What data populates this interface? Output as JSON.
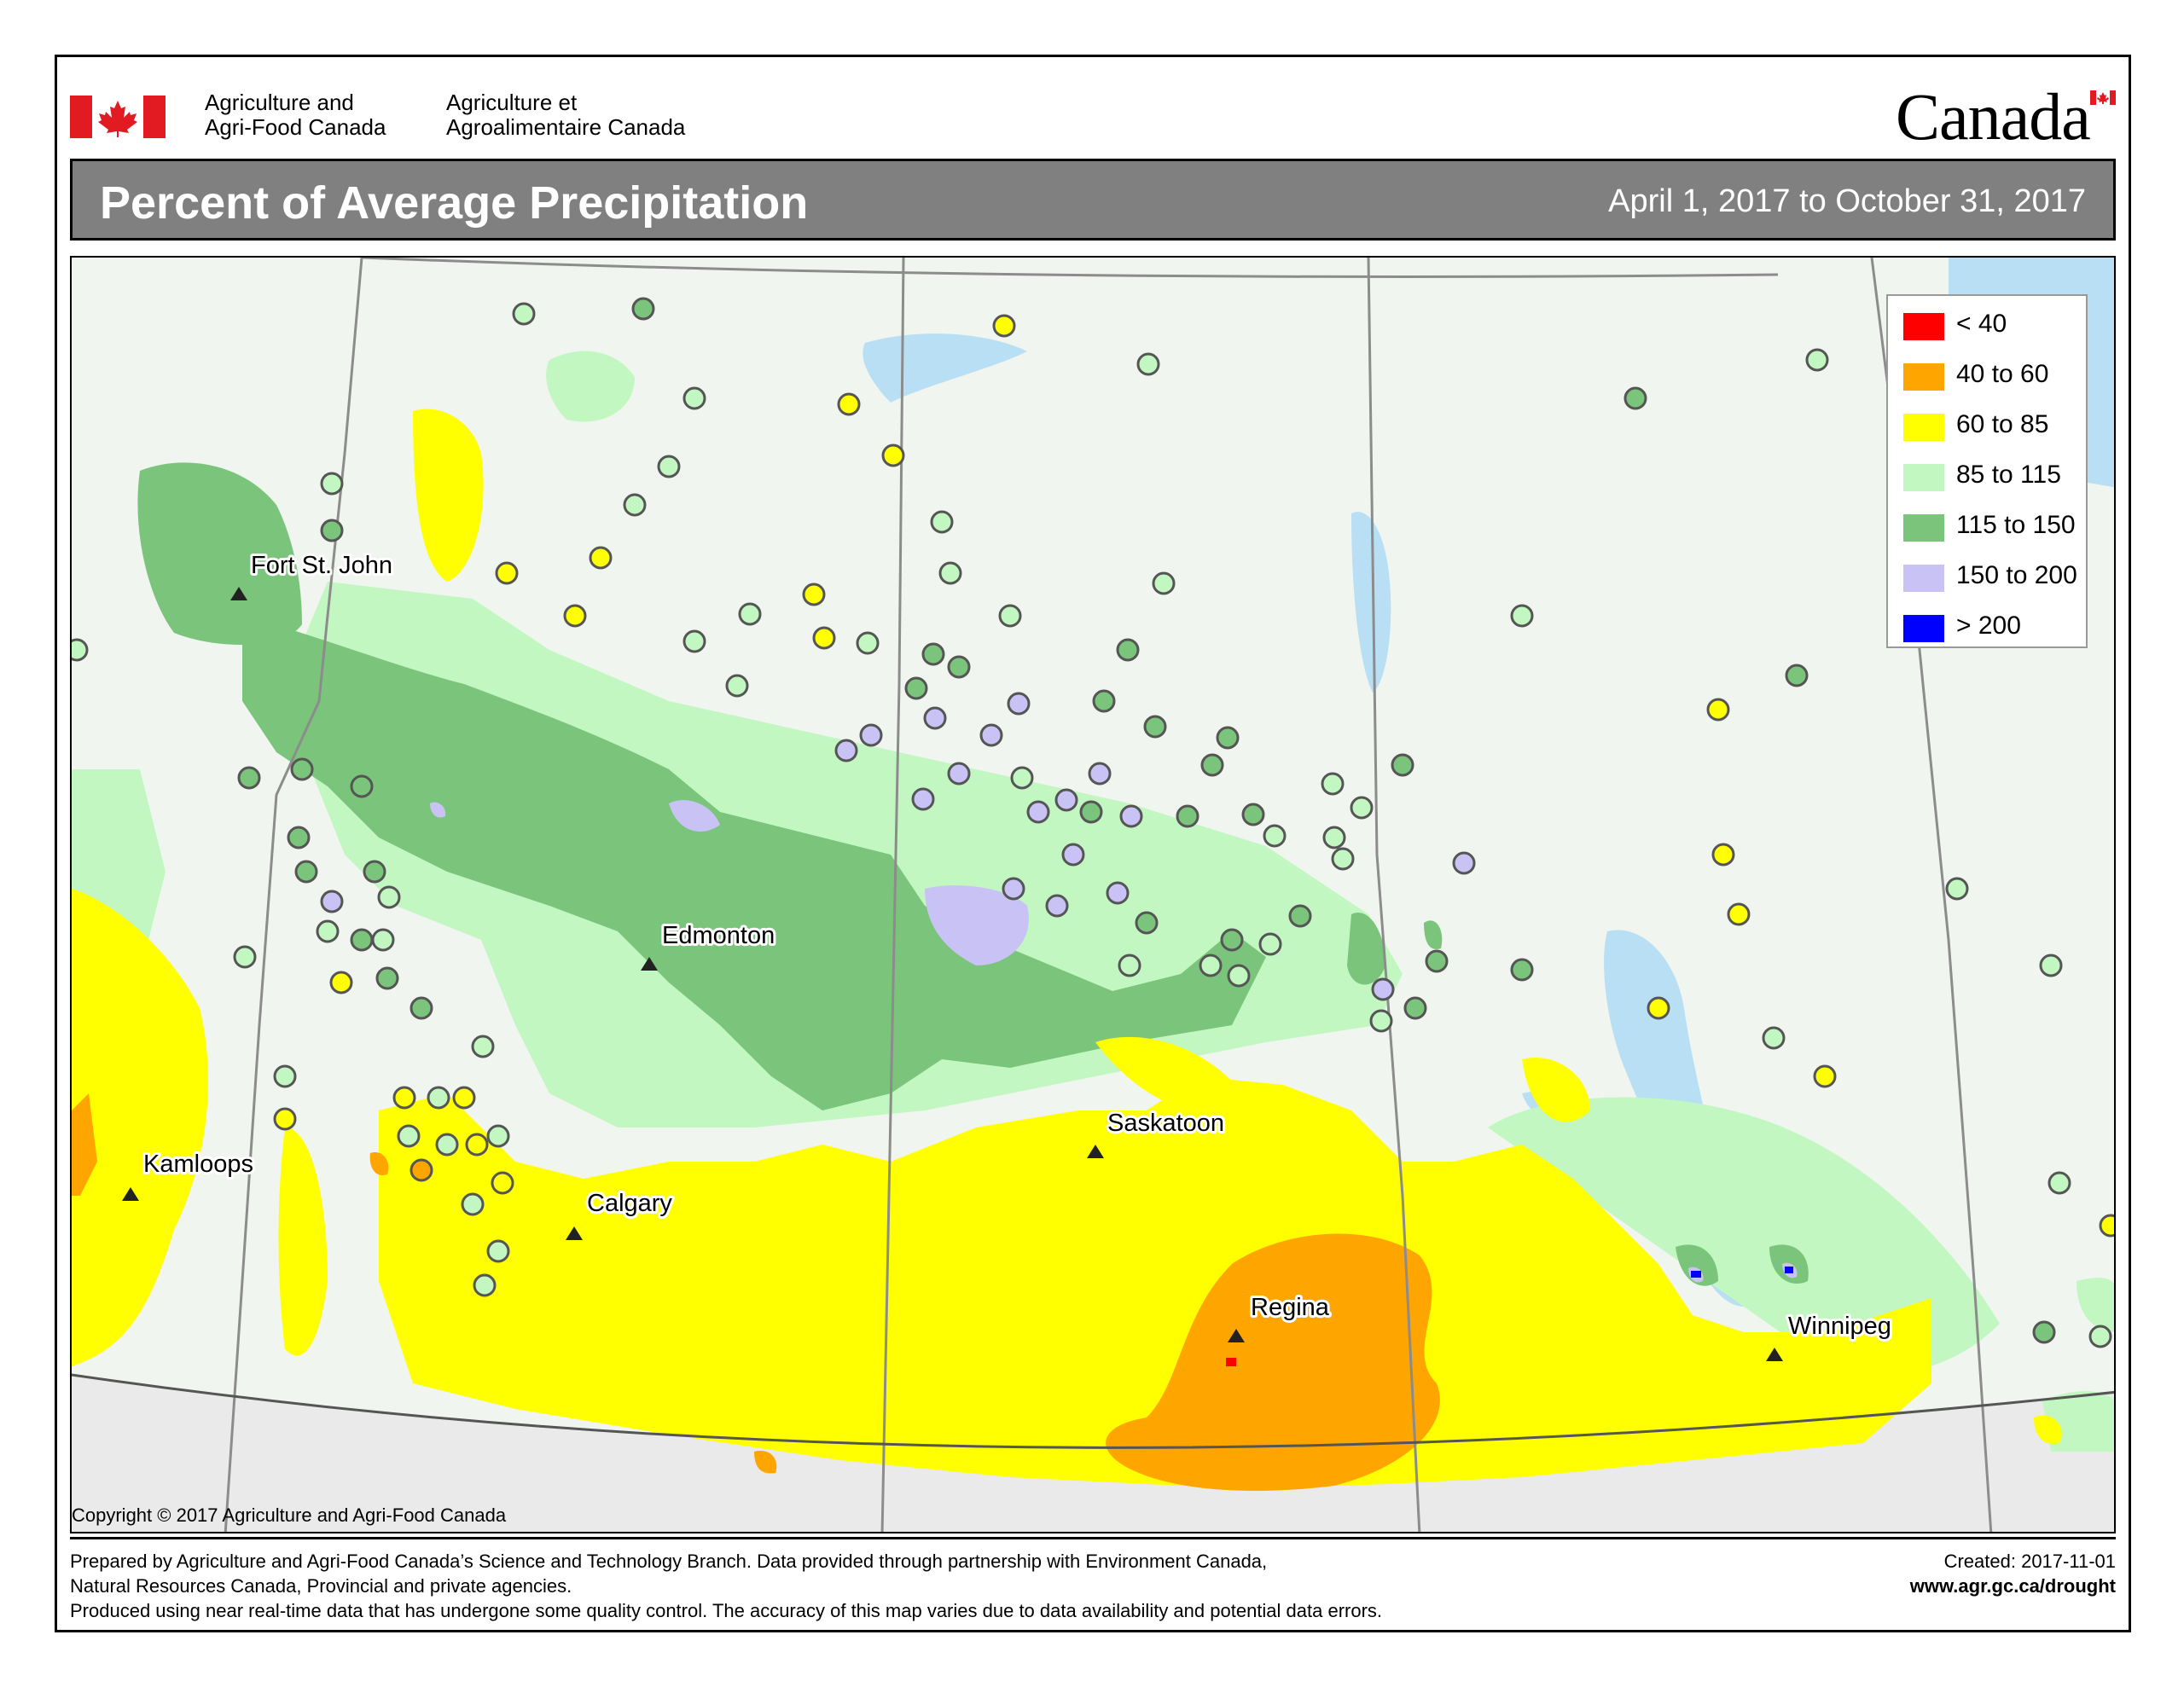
{
  "header": {
    "agency_en_line1": "Agriculture and",
    "agency_en_line2": "Agri-Food Canada",
    "agency_fr_line1": "Agriculture et",
    "agency_fr_line2": "Agroalimentaire Canada",
    "wordmark": "Canada"
  },
  "title_bar": {
    "title": "Percent of Average Precipitation",
    "period": "April 1, 2017 to October 31, 2017"
  },
  "legend": {
    "items": [
      {
        "label": "< 40",
        "color": "#ff0000"
      },
      {
        "label": "40 to 60",
        "color": "#ffa500"
      },
      {
        "label": "60 to 85",
        "color": "#ffff00"
      },
      {
        "label": "85 to 115",
        "color": "#c2f7c2"
      },
      {
        "label": "115 to 150",
        "color": "#7bc47b"
      },
      {
        "label": "150 to 200",
        "color": "#c8c3f4"
      },
      {
        "label": "> 200",
        "color": "#0000ff"
      }
    ]
  },
  "map": {
    "cities": [
      {
        "name": "Fort St. John"
      },
      {
        "name": "Edmonton"
      },
      {
        "name": "Kamloops"
      },
      {
        "name": "Calgary"
      },
      {
        "name": "Saskatoon"
      },
      {
        "name": "Regina"
      },
      {
        "name": "Winnipeg"
      }
    ],
    "copyright": "Copyright © 2017 Agriculture and Agri-Food Canada",
    "colors": {
      "water": "#b9dff5",
      "land": "#f1f5ef",
      "us_land": "#efefef",
      "boundary": "#9a9a9a"
    }
  },
  "footer": {
    "line1": "Prepared by Agriculture and Agri-Food Canada’s Science and Technology Branch. Data provided through partnership with Environment Canada,",
    "line2": "Natural Resources Canada, Provincial and private agencies.",
    "line3": "Produced using near real-time data that has undergone some quality control. The accuracy of this map varies due to data availability and potential data errors.",
    "created": "Created: 2017-11-01",
    "url": "www.agr.gc.ca/drought"
  }
}
